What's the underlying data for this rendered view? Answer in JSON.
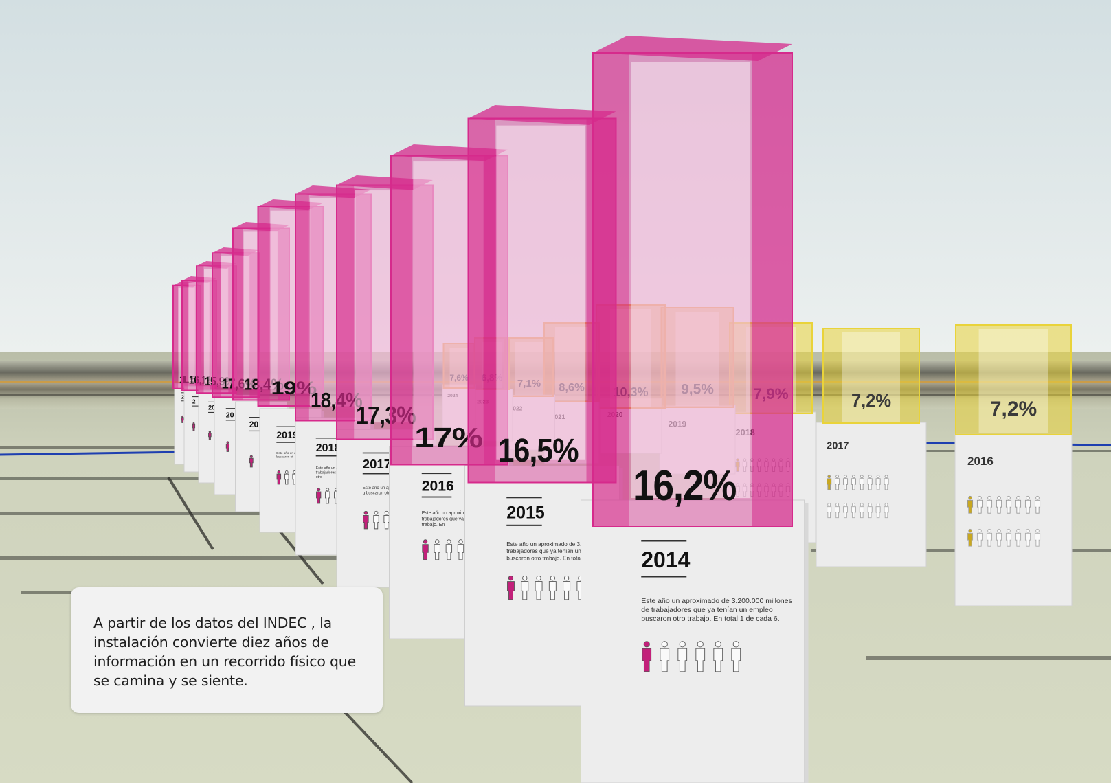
{
  "caption": {
    "text": "A partir de los datos del INDEC , la instalación convierte diez años de información en un recorrido físico que se camina y se siente."
  },
  "colors": {
    "sky_top": "#d3dfe2",
    "sky_bottom": "#e9eeee",
    "ground": "#cfd3bd",
    "magenta": "#d62a8c",
    "yellow": "#e9d33a",
    "orange": "#e8a64a",
    "pedestal": "#ececec"
  },
  "series": {
    "magenta": {
      "name": "",
      "items": [
        {
          "pct": "16,2%",
          "year": "2014",
          "desc": "Este año un aproximado de 3.200.000 millones de trabajadores que ya tenían un empleo buscaron otro trabajo. En total 1 de cada 6."
        },
        {
          "pct": "16,5%",
          "year": "2015",
          "desc": "Este año un aproximado de 3.300.000 de trabajadores que ya tenían un em buscaron otro trabajo. En total 1 de"
        },
        {
          "pct": "17%",
          "year": "2016",
          "desc": "Este año un aproximado d de trabajadores que ya t buscaron otro trabajo. En"
        },
        {
          "pct": "17,3%",
          "year": "2017",
          "desc": "Este año un aproxi de trabajadores q buscaron otro tr"
        },
        {
          "pct": "18,4%",
          "year": "2018",
          "desc": "Este año un aprox de trabajadores que ya buscaron otro"
        },
        {
          "pct": "19%",
          "year": "2019",
          "desc": "Este año un de trabajado buscaron ot"
        },
        {
          "pct": "18,4%",
          "year": "20",
          "desc": ""
        },
        {
          "pct": "17,6%",
          "year": "20",
          "desc": ""
        },
        {
          "pct": "15,9%",
          "year": "20",
          "desc": ""
        },
        {
          "pct": "16,1%",
          "year": "2",
          "desc": ""
        },
        {
          "pct": "15",
          "year": "2",
          "desc": ""
        }
      ]
    },
    "yellow": {
      "name": "",
      "items": [
        {
          "pct": "7,2%",
          "year": "2016"
        },
        {
          "pct": "7,2%",
          "year": "2017"
        },
        {
          "pct": "7,9%",
          "year": "2018"
        },
        {
          "pct": "9,5%",
          "year": "2019"
        },
        {
          "pct": "10,3%",
          "year": "2020"
        },
        {
          "pct": "8,6%",
          "year": "2021"
        },
        {
          "pct": "7,1%",
          "year": "2022"
        },
        {
          "pct": "6,8%",
          "year": "2023"
        },
        {
          "pct": "7,6%",
          "year": "2024"
        }
      ]
    }
  },
  "icons": {
    "person": "person-icon"
  }
}
